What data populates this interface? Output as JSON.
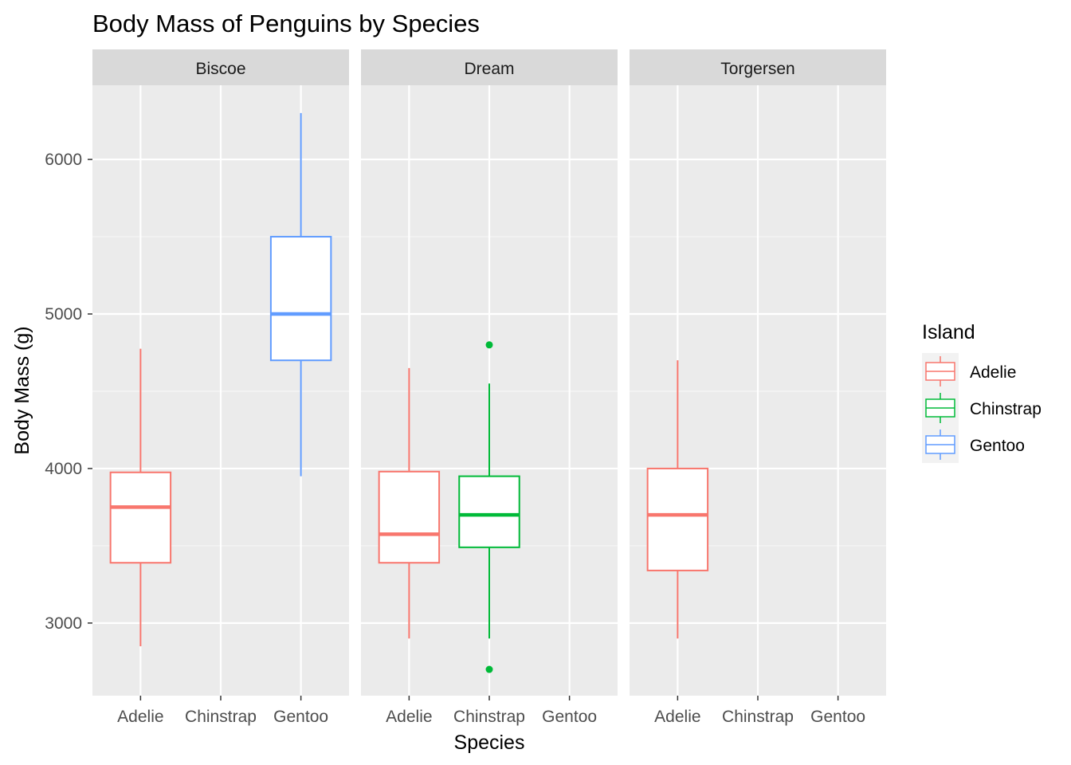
{
  "chart_data": {
    "type": "boxplot",
    "title": "Body Mass of Penguins by Species",
    "xlabel": "Species",
    "ylabel": "Body Mass (g)",
    "categories": [
      "Adelie",
      "Chinstrap",
      "Gentoo"
    ],
    "ylim": [
      2530,
      6480
    ],
    "y_ticks": [
      3000,
      4000,
      5000,
      6000
    ],
    "grid": true,
    "legend": {
      "title": "Island",
      "position": "right",
      "entries": [
        {
          "label": "Adelie",
          "color": "#F8766D"
        },
        {
          "label": "Chinstrap",
          "color": "#00BA38"
        },
        {
          "label": "Gentoo",
          "color": "#619CFF"
        }
      ]
    },
    "facets": [
      {
        "name": "Biscoe",
        "boxes": [
          {
            "category": "Adelie",
            "color": "#F8766D",
            "min": 2850,
            "q1": 3390,
            "median": 3750,
            "q3": 3975,
            "max": 4775,
            "outliers": []
          },
          {
            "category": "Gentoo",
            "color": "#619CFF",
            "min": 3950,
            "q1": 4700,
            "median": 5000,
            "q3": 5500,
            "max": 6300,
            "outliers": []
          }
        ]
      },
      {
        "name": "Dream",
        "boxes": [
          {
            "category": "Adelie",
            "color": "#F8766D",
            "min": 2900,
            "q1": 3390,
            "median": 3575,
            "q3": 3980,
            "max": 4650,
            "outliers": []
          },
          {
            "category": "Chinstrap",
            "color": "#00BA38",
            "min": 2900,
            "q1": 3490,
            "median": 3700,
            "q3": 3950,
            "max": 4550,
            "outliers": [
              4800,
              2700
            ]
          }
        ]
      },
      {
        "name": "Torgersen",
        "boxes": [
          {
            "category": "Adelie",
            "color": "#F8766D",
            "min": 2900,
            "q1": 3340,
            "median": 3700,
            "q3": 4000,
            "max": 4700,
            "outliers": []
          }
        ]
      }
    ]
  }
}
